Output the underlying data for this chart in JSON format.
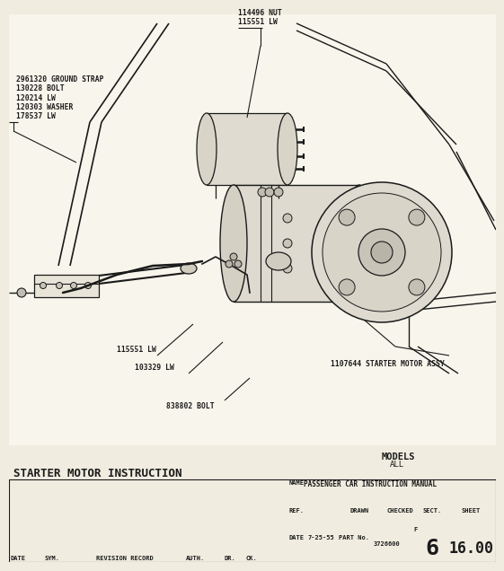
{
  "bg_color": "#f0ece0",
  "line_color": "#1a1a1a",
  "title": "STARTER MOTOR INSTRUCTION",
  "models_line1": "MODELS",
  "models_line2": "ALL",
  "labels": {
    "nut_lw": "114496 NUT\n115551 LW",
    "ground_strap": "2961320 GROUND STRAP\n130228 BOLT\n120214 LW\n120303 WASHER\n178537 LW",
    "starter_motor": "1107644 STARTER MOTOR ASSY",
    "lw1": "115551 LW",
    "lw2": "103329 LW",
    "bolt": "838802 BOLT"
  },
  "footer": {
    "name_label": "NAME",
    "name_val": "PASSENGER CAR INSTRUCTION MANUAL",
    "ref_label": "REF.",
    "drawn_label": "DRAWN",
    "checked_label": "CHECKED",
    "f_val": "F",
    "sect_label": "SECT.",
    "sheet_label": "SHEET",
    "date_label": "DATE",
    "date_val": "7-25-55",
    "part_label": "PART No.",
    "part_val": "3726600",
    "sect_val": "6",
    "sheet_val": "16.00"
  }
}
